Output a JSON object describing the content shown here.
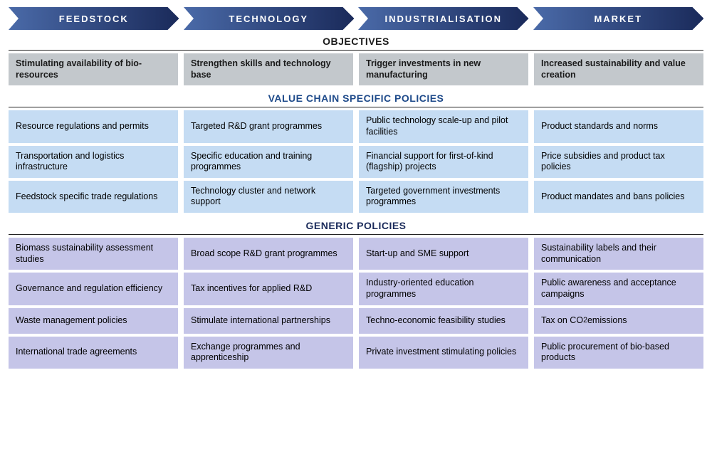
{
  "colors": {
    "arrow_start": "#4a6aa8",
    "arrow_end": "#1a2a5a",
    "objectives_bg": "#c3c8cc",
    "vcsp_bg": "#c5dcf3",
    "generic_bg": "#c5c5e8",
    "hr": "#222222",
    "title_blue": "#1e4a8a",
    "title_navy": "#1a2a5a"
  },
  "fonts": {
    "arrow_size": 13,
    "title_size": 14,
    "cell_size": 12.5
  },
  "columns": [
    "FEEDSTOCK",
    "TECHNOLOGY",
    "INDUSTRIALISATION",
    "MARKET"
  ],
  "sections": {
    "objectives": {
      "title": "OBJECTIVES",
      "rows": [
        [
          "Stimulating availability of bio-resources",
          "Strengthen skills and technology base",
          "Trigger investments in new manufacturing",
          "Increased sustainability and value creation"
        ]
      ]
    },
    "vcsp": {
      "title": "VALUE CHAIN SPECIFIC POLICIES",
      "rows": [
        [
          "Resource regulations and permits",
          "Targeted R&D grant programmes",
          "Public technology scale-up and pilot facilities",
          "Product standards and norms"
        ],
        [
          "Transportation and logistics infrastructure",
          "Specific education and training programmes",
          "Financial support for first-of-kind (flagship) projects",
          "Price subsidies and product tax policies"
        ],
        [
          "Feedstock specific trade regulations",
          "Technology cluster and network support",
          "Targeted government investments programmes",
          "Product mandates and bans policies"
        ]
      ]
    },
    "generic": {
      "title": "GENERIC POLICIES",
      "rows": [
        [
          "Biomass sustainability assessment studies",
          "Broad scope R&D grant programmes",
          "Start-up and SME support",
          "Sustainability labels and their communication"
        ],
        [
          "Governance and regulation efficiency",
          "Tax incentives for applied R&D",
          "Industry-oriented education programmes",
          "Public awareness and acceptance campaigns"
        ],
        [
          "Waste management policies",
          "Stimulate international partnerships",
          "Techno-economic feasibility studies",
          "Tax on CO₂ emissions"
        ],
        [
          "International trade agreements",
          "Exchange programmes and apprenticeship",
          "Private investment stimulating policies",
          "Public procurement of bio-based products"
        ]
      ]
    }
  }
}
